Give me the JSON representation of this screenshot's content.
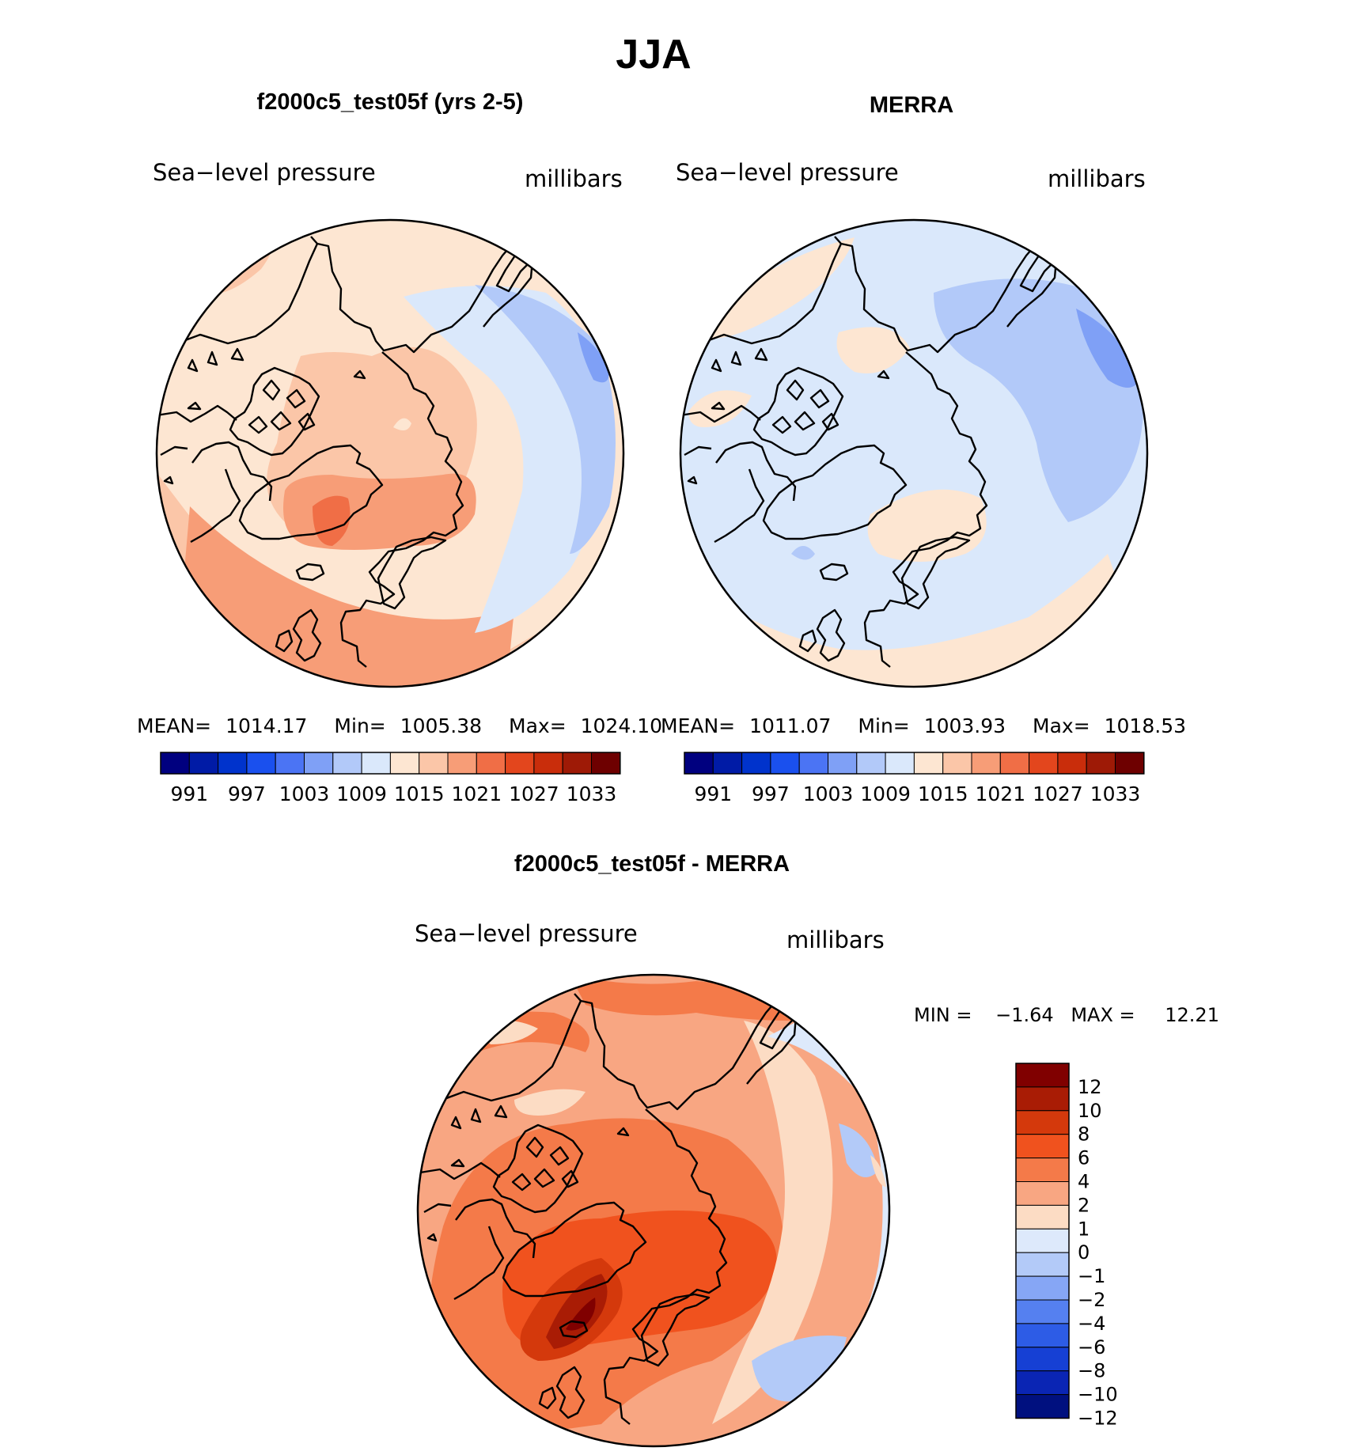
{
  "title": "JJA",
  "chart_data": [
    {
      "type": "contour-map",
      "projection": "north-polar-stereographic",
      "panel_title": "f2000c5_test05f (yrs 2-5)",
      "variable": "Sea−level pressure",
      "units": "millibars",
      "stats": {
        "mean_label": "MEAN=",
        "mean": "1014.17",
        "min_label": "Min=",
        "min": "1005.38",
        "max_label": "Max=",
        "max": "1024.10"
      },
      "colorbar_ticks": [
        "991",
        "997",
        "1003",
        "1009",
        "1015",
        "1021",
        "1027",
        "1033"
      ]
    },
    {
      "type": "contour-map",
      "projection": "north-polar-stereographic",
      "panel_title": "MERRA",
      "variable": "Sea−level pressure",
      "units": "millibars",
      "stats": {
        "mean_label": "MEAN=",
        "mean": "1011.07",
        "min_label": "Min=",
        "min": "1003.93",
        "max_label": "Max=",
        "max": "1018.53"
      },
      "colorbar_ticks": [
        "991",
        "997",
        "1003",
        "1009",
        "1015",
        "1021",
        "1027",
        "1033"
      ]
    },
    {
      "type": "contour-map",
      "projection": "north-polar-stereographic",
      "panel_title": "f2000c5_test05f - MERRA",
      "variable": "Sea−level pressure",
      "units": "millibars",
      "stats": {
        "min_label": "MIN =",
        "min": "−1.64",
        "max_label": "MAX =",
        "max": "12.21"
      },
      "colorbar_ticks": [
        "12",
        "10",
        "8",
        "6",
        "4",
        "2",
        "1",
        "0",
        "−1",
        "−2",
        "−4",
        "−6",
        "−8",
        "−10",
        "−12"
      ]
    }
  ],
  "colors": {
    "field_scale": [
      "#00007f",
      "#001ba6",
      "#0033cc",
      "#1a50ee",
      "#4b74f4",
      "#7fa0f6",
      "#b2c9f9",
      "#dae8fb",
      "#fde6d2",
      "#fbc6a8",
      "#f79d77",
      "#f06e46",
      "#e3461d",
      "#c92d0b",
      "#9e1a06",
      "#6e0000"
    ],
    "diff_scale": [
      "#800000",
      "#a91c05",
      "#d4390c",
      "#f0521e",
      "#f47a49",
      "#f8a682",
      "#fcdcc4",
      "#dde9fb",
      "#b3caf8",
      "#86a6f5",
      "#5580f0",
      "#2d5ce6",
      "#1640d4",
      "#0a25b4",
      "#00107f"
    ],
    "model_field": [
      "#fde6d2",
      "#fbc6a8",
      "#f79d77",
      "#f06e46",
      "#dae8fb",
      "#b2c9f9",
      "#7fa0f6",
      "#4b74f4"
    ],
    "merra_field": [
      "#dae8fb",
      "#fde6d2",
      "#fbc6a8",
      "#b2c9f9",
      "#7fa0f6"
    ],
    "diff_field": [
      "#f8a682",
      "#f47a49",
      "#f0521e",
      "#d4390c",
      "#a91c05",
      "#800000",
      "#fcdcc4",
      "#dde9fb",
      "#b3caf8"
    ]
  }
}
